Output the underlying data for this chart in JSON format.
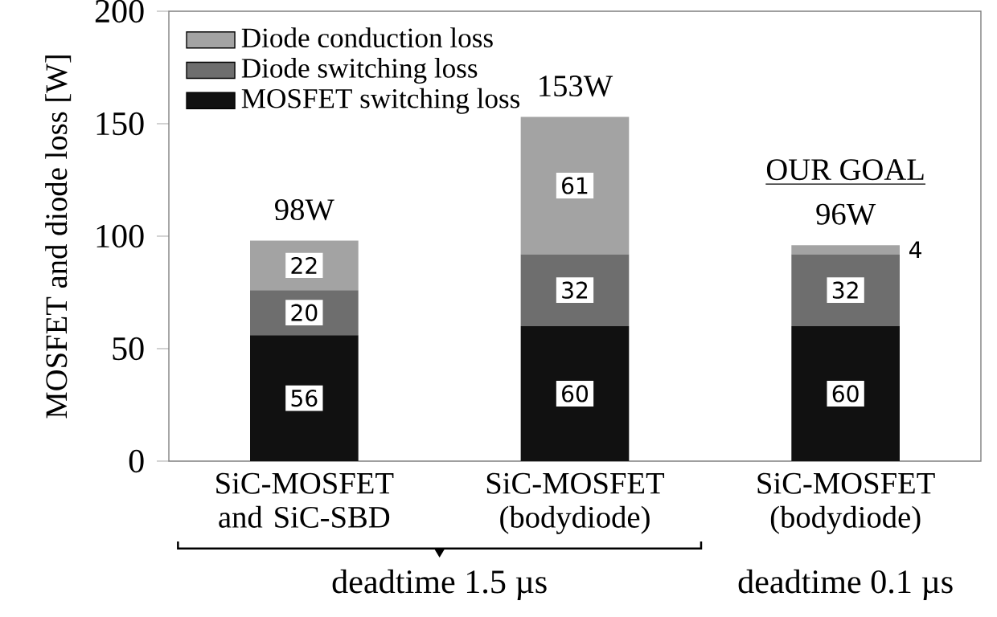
{
  "chart_data": {
    "type": "bar",
    "stacked": true,
    "ylabel": "MOSFET and diode loss [W]",
    "categories": [
      "SiC-MOSFET and SiC-SBD",
      "SiC-MOSFET (bodydiode)",
      "SiC-MOSFET (bodydiode)"
    ],
    "series": [
      {
        "name": "MOSFET switching loss",
        "color": "#111111",
        "values": [
          56,
          60,
          60
        ]
      },
      {
        "name": "Diode switching loss",
        "color": "#6e6e6e",
        "values": [
          20,
          32,
          32
        ]
      },
      {
        "name": "Diode conduction loss",
        "color": "#a3a3a3",
        "values": [
          22,
          61,
          4
        ]
      }
    ],
    "data_labels": true,
    "totals": [
      "98W",
      "153W",
      "96W"
    ],
    "annotations": [
      "OUR GOAL",
      "deadtime 1.5 µs",
      "deadtime 0.1 µs"
    ],
    "ylim": [
      0,
      200
    ],
    "yticks": [
      0,
      50,
      100,
      150,
      200
    ],
    "legend": "top left"
  }
}
